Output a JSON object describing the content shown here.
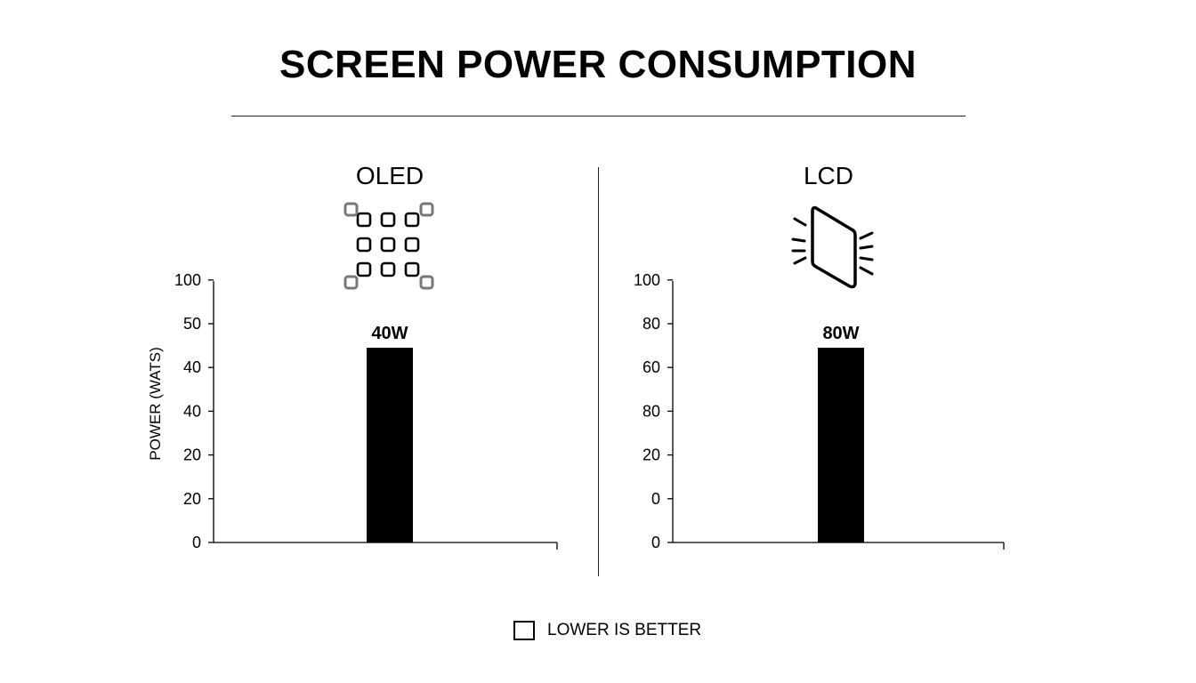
{
  "header": {
    "title": "SCREEN POWER CONSUMPTION"
  },
  "legend": {
    "label": "LOWER IS BETTER"
  },
  "chart_data": [
    {
      "type": "bar",
      "title": "OLED",
      "icon": "oled-pixel-grid-icon",
      "ylabel": "POWER (WATS)",
      "tick_labels": [
        "0",
        "20",
        "20",
        "40",
        "40",
        "50",
        "100"
      ],
      "categories": [
        ""
      ],
      "values": [
        40
      ],
      "data_labels": [
        "40W"
      ],
      "bar_color": "#000000",
      "legend": "bottom-center",
      "grid": false
    },
    {
      "type": "bar",
      "title": "LCD",
      "icon": "lcd-backlit-panel-icon",
      "ylabel": "",
      "tick_labels": [
        "0",
        "0",
        "20",
        "80",
        "60",
        "80",
        "100"
      ],
      "categories": [
        ""
      ],
      "values": [
        80
      ],
      "data_labels": [
        "80W"
      ],
      "bar_color": "#000000",
      "legend": "bottom-center",
      "grid": false
    }
  ]
}
